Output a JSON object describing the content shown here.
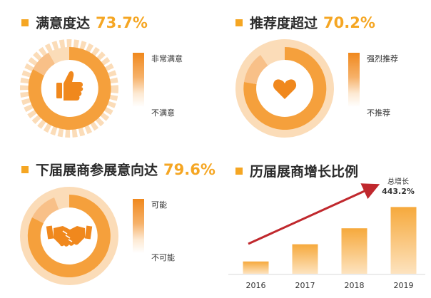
{
  "panels": [
    {
      "title": "满意度达",
      "value": "73.7%",
      "legend_top": "非常满意",
      "legend_bottom": "不满意",
      "icon": "thumbs-up-icon"
    },
    {
      "title": "推荐度超过",
      "value": "70.2%",
      "legend_top": "强烈推荐",
      "legend_bottom": "不推荐",
      "icon": "heart-icon"
    },
    {
      "title": "下届展商参展意向达",
      "value": "79.6%",
      "legend_top": "可能",
      "legend_bottom": "不可能",
      "icon": "handshake-icon"
    }
  ],
  "colors": {
    "accent": "#f5a623",
    "dark_orange": "#f0881d",
    "light_orange": "#f8c088",
    "pale_orange": "#fbdcb8",
    "arrow_red": "#c0282d"
  },
  "chart_data": {
    "type": "bar",
    "title": "历届展商增长比例",
    "categories": [
      "2016",
      "2017",
      "2018",
      "2019"
    ],
    "values": [
      1,
      2.4,
      3.7,
      5.43
    ],
    "ylim": [
      0,
      5.8
    ],
    "annotation": {
      "label": "总增长",
      "value": "443.2%"
    }
  }
}
